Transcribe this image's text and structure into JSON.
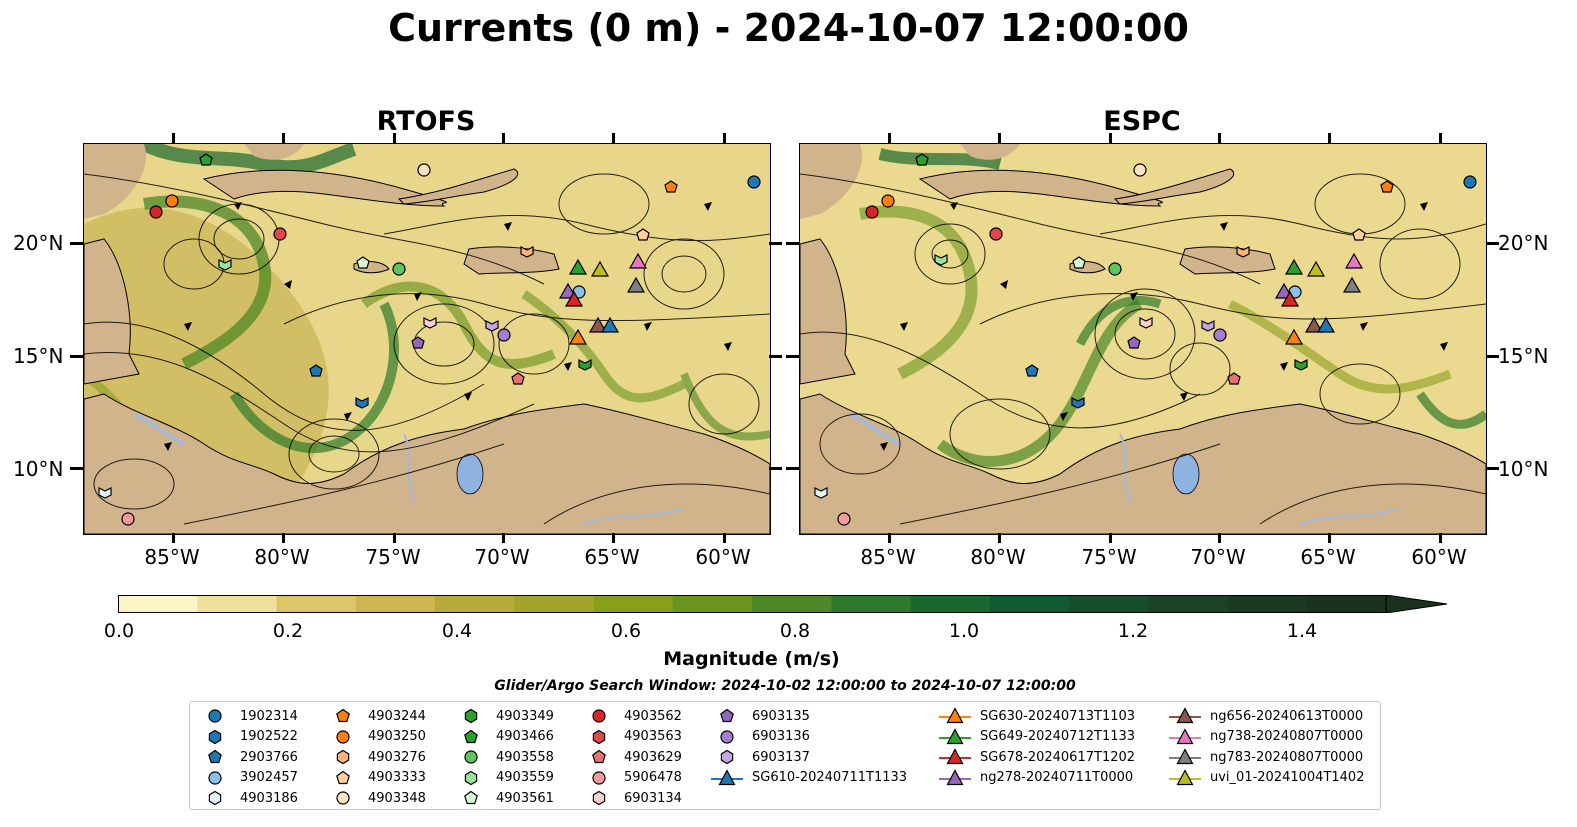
{
  "title": "Currents (0 m) - 2024-10-07 12:00:00",
  "panels": [
    {
      "title": "RTOFS"
    },
    {
      "title": "ESPC"
    }
  ],
  "lat_labels": [
    "20°N",
    "15°N",
    "10°N"
  ],
  "lon_labels": [
    "85°W",
    "80°W",
    "75°W",
    "70°W",
    "65°W",
    "60°W"
  ],
  "colorbar": {
    "label": "Magnitude (m/s)",
    "ticks": [
      "0.0",
      "0.2",
      "0.4",
      "0.6",
      "0.8",
      "1.0",
      "1.2",
      "1.4"
    ],
    "colors": [
      "#fbf6c4",
      "#efe19b",
      "#ddc66a",
      "#ceb54f",
      "#b7ab3c",
      "#a3a42d",
      "#889f1c",
      "#6b951f",
      "#4d8726",
      "#2f7a2a",
      "#19682f",
      "#0f5a2e",
      "#164e2a",
      "#1a4325",
      "#1b3a22",
      "#1c3220"
    ]
  },
  "search_window": "Glider/Argo Search Window: 2024-10-02 12:00:00 to 2024-10-07 12:00:00",
  "legend": {
    "argo": [
      {
        "label": "1902314",
        "color": "#1f77b4",
        "shape": "circle"
      },
      {
        "label": "1902522",
        "color": "#1f77b4",
        "shape": "hexagon"
      },
      {
        "label": "2903766",
        "color": "#1f77b4",
        "shape": "pentagon"
      },
      {
        "label": "3902457",
        "color": "#8ec1ea",
        "shape": "circle"
      },
      {
        "label": "4903186",
        "color": "#e6f3fb",
        "shape": "hexagon"
      },
      {
        "label": "4903244",
        "color": "#ff7f0e",
        "shape": "pentagon"
      },
      {
        "label": "4903250",
        "color": "#ff7f0e",
        "shape": "circle"
      },
      {
        "label": "4903276",
        "color": "#ffb27a",
        "shape": "hexagon"
      },
      {
        "label": "4903333",
        "color": "#ffd0a0",
        "shape": "pentagon"
      },
      {
        "label": "4903348",
        "color": "#ffe2c6",
        "shape": "circle"
      },
      {
        "label": "4903349",
        "color": "#2ca02c",
        "shape": "hexagon"
      },
      {
        "label": "4903466",
        "color": "#2ca02c",
        "shape": "pentagon"
      },
      {
        "label": "4903558",
        "color": "#5fc65f",
        "shape": "circle"
      },
      {
        "label": "4903559",
        "color": "#98e598",
        "shape": "hexagon"
      },
      {
        "label": "4903561",
        "color": "#d5f8d5",
        "shape": "pentagon"
      },
      {
        "label": "4903562",
        "color": "#d62728",
        "shape": "circle"
      },
      {
        "label": "4903563",
        "color": "#e04848",
        "shape": "hexagon"
      },
      {
        "label": "4903629",
        "color": "#e87272",
        "shape": "pentagon"
      },
      {
        "label": "5906478",
        "color": "#f39a9a",
        "shape": "circle"
      },
      {
        "label": "6903134",
        "color": "#fbd0d0",
        "shape": "hexagon"
      },
      {
        "label": "6903135",
        "color": "#9467bd",
        "shape": "pentagon"
      },
      {
        "label": "6903136",
        "color": "#a27fd0",
        "shape": "circle"
      },
      {
        "label": "6903137",
        "color": "#c6a6e6",
        "shape": "hexagon"
      }
    ],
    "gliders": [
      {
        "label": "SG610-20240711T1133",
        "color": "#1f77b4"
      },
      {
        "label": "SG630-20240713T1103",
        "color": "#ff7f0e"
      },
      {
        "label": "SG649-20240712T1133",
        "color": "#2ca02c"
      },
      {
        "label": "SG678-20240617T1202",
        "color": "#d62728"
      },
      {
        "label": "ng278-20240711T0000",
        "color": "#9467bd"
      },
      {
        "label": "ng656-20240613T0000",
        "color": "#8c564b"
      },
      {
        "label": "ng738-20240807T0000",
        "color": "#e377c2"
      },
      {
        "label": "ng783-20240807T0000",
        "color": "#7f7f7f"
      },
      {
        "label": "uvi_01-20241004T1402",
        "color": "#bcbd22"
      }
    ]
  },
  "map_colors": {
    "land": "#d2b48c",
    "lake": "#8fb3e0",
    "river": "#a5b8d8"
  }
}
